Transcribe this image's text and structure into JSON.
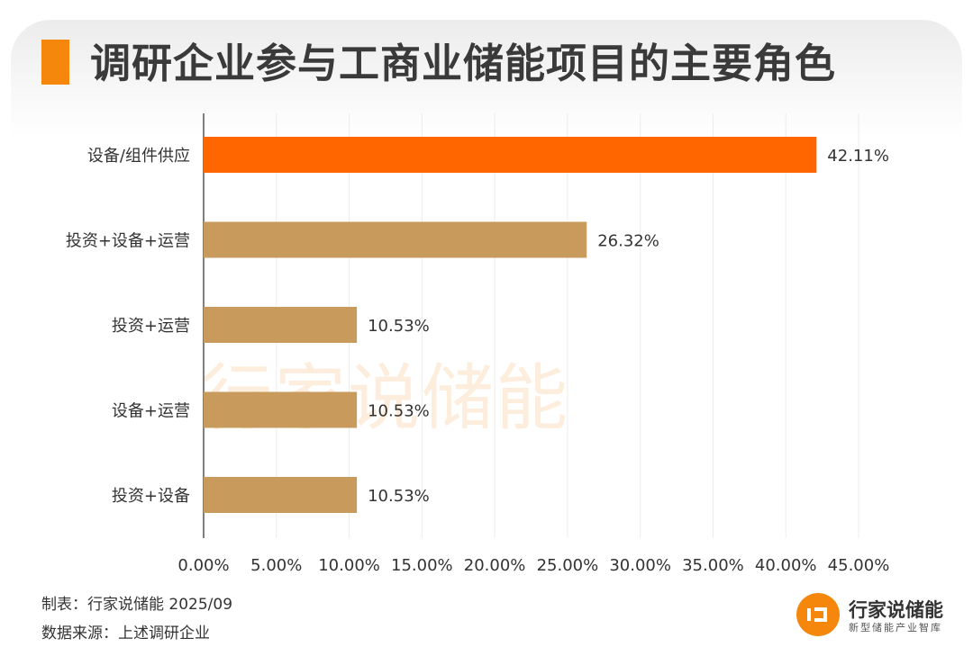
{
  "chart_data": {
    "type": "bar",
    "orientation": "horizontal",
    "title": "调研企业参与工商业储能项目的主要角色",
    "categories": [
      "设备/组件供应",
      "投资+设备+运营",
      "投资+运营",
      "设备+运营",
      "投资+设备"
    ],
    "values": [
      42.11,
      26.32,
      10.53,
      10.53,
      10.53
    ],
    "value_labels": [
      "42.11%",
      "26.32%",
      "10.53%",
      "10.53%",
      "10.53%"
    ],
    "xlim": [
      0,
      45
    ],
    "ticks": [
      0,
      5,
      10,
      15,
      20,
      25,
      30,
      35,
      40,
      45
    ],
    "tick_labels": [
      "0.00%",
      "5.00%",
      "10.00%",
      "15.00%",
      "20.00%",
      "25.00%",
      "30.00%",
      "35.00%",
      "40.00%",
      "45.00%"
    ],
    "grid": true,
    "highlight_color": "#ff6600",
    "bar_color": "#c89a5c"
  },
  "watermark": "行家说储能",
  "footer": {
    "maker": "制表：行家说储能 2025/09",
    "source": "数据来源：上述调研企业"
  },
  "logo": {
    "icon": "logo-mark-icon",
    "name": "行家说储能",
    "tagline": "新型储能产业智库",
    "color": "#f5870d"
  }
}
